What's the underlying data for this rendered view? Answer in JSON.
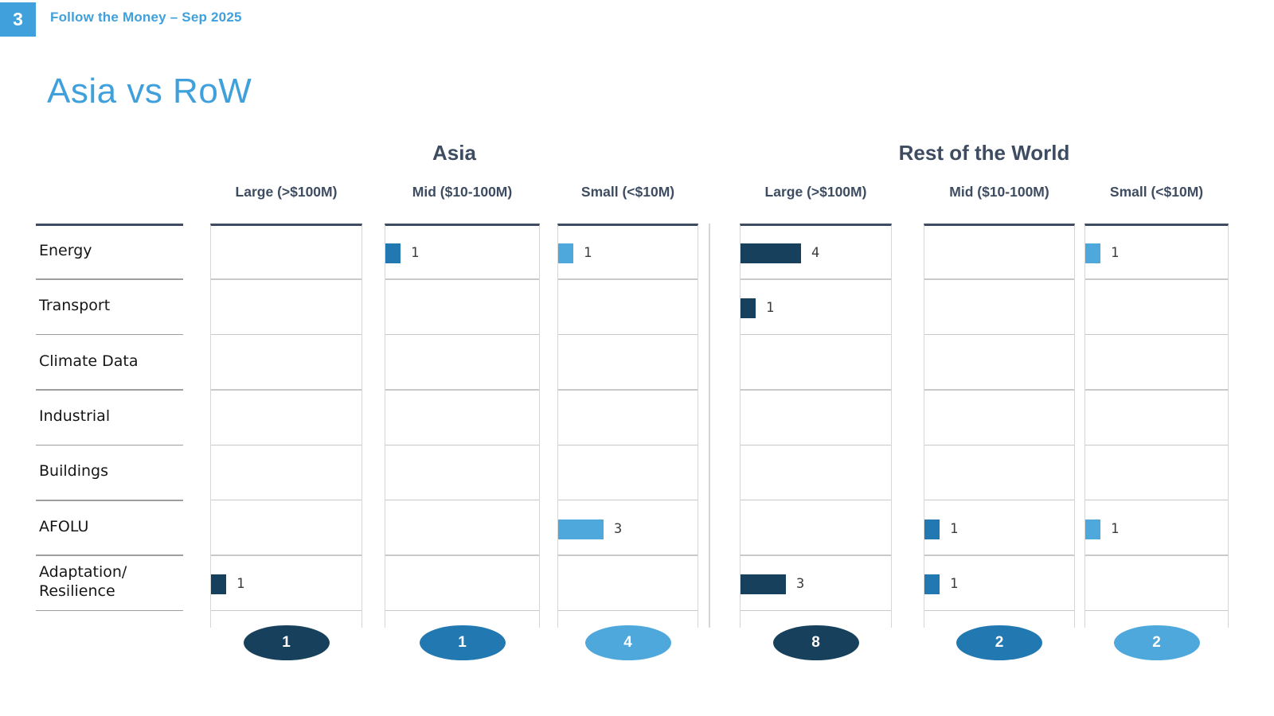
{
  "page": {
    "slide_number": "3",
    "deck_header": "Follow the Money – Sep 2025",
    "title": "Asia vs RoW"
  },
  "colors": {
    "accent_blue": "#3FA0DB",
    "slate_text": "#3E4C61",
    "bar_large": "#17405C",
    "bar_mid": "#2279B2",
    "bar_small": "#4FA8DC"
  },
  "chart_data": {
    "type": "bar",
    "title": "Asia vs RoW",
    "layout_hint": "two small-multiple matrices (region x sector x deal-size), bars show deal counts, oval badges show column totals",
    "columns": [
      "Large (>$100M)",
      "Mid ($10-100M)",
      "Small (<$10M)"
    ],
    "rows": [
      "Energy",
      "Transport",
      "Climate Data",
      "Industrial",
      "Buildings",
      "AFOLU",
      "Adaptation/\nResilience"
    ],
    "regions": [
      {
        "name": "Asia",
        "values": [
          [
            0,
            1,
            1
          ],
          [
            0,
            0,
            0
          ],
          [
            0,
            0,
            0
          ],
          [
            0,
            0,
            0
          ],
          [
            0,
            0,
            0
          ],
          [
            0,
            0,
            3
          ],
          [
            1,
            0,
            0
          ]
        ],
        "totals": [
          1,
          1,
          4
        ]
      },
      {
        "name": "Rest of the World",
        "values": [
          [
            4,
            0,
            1
          ],
          [
            1,
            0,
            0
          ],
          [
            0,
            0,
            0
          ],
          [
            0,
            0,
            0
          ],
          [
            0,
            0,
            0
          ],
          [
            0,
            1,
            1
          ],
          [
            3,
            1,
            0
          ]
        ],
        "totals": [
          8,
          2,
          2
        ]
      }
    ]
  }
}
